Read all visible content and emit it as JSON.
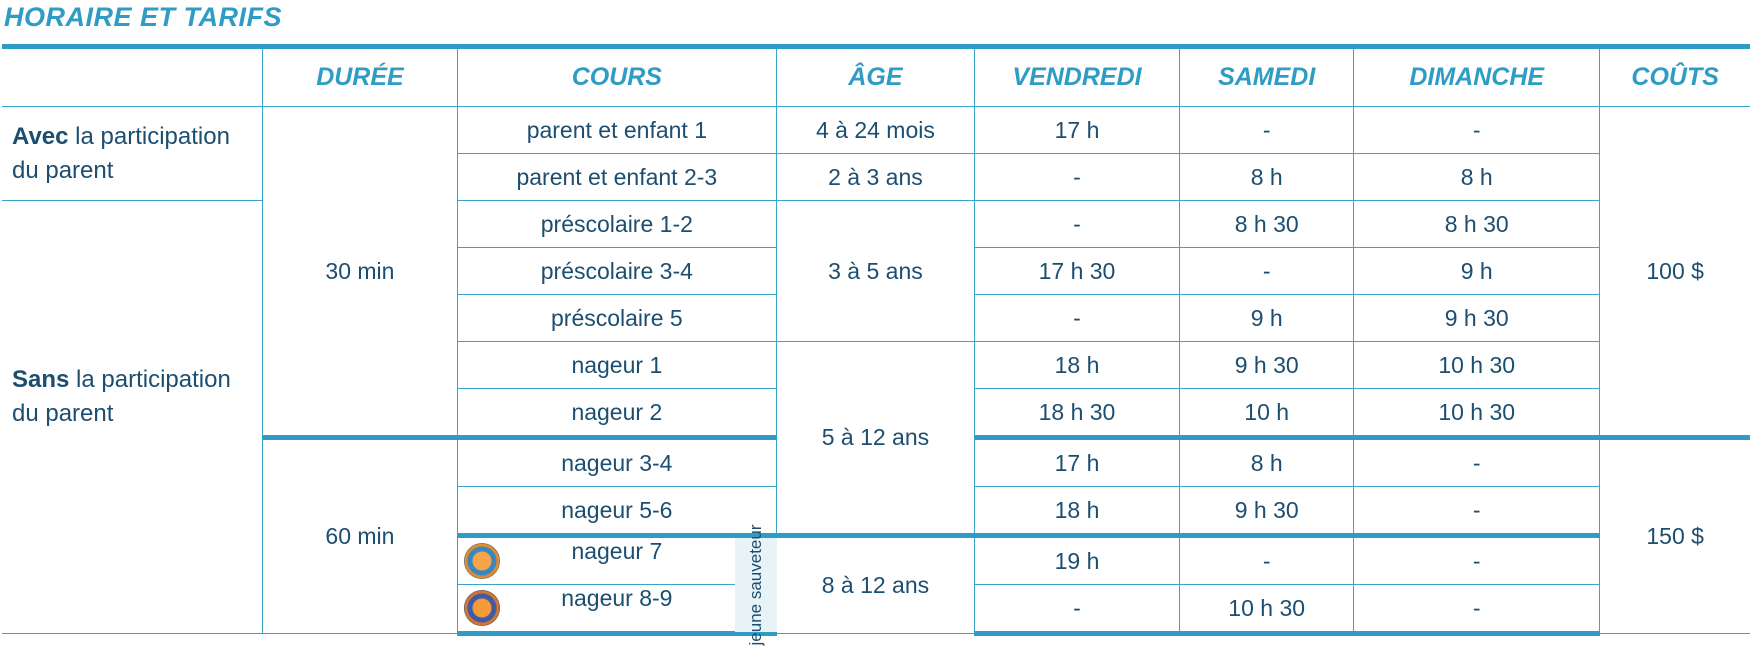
{
  "title": "HORAIRE ET TARIFS",
  "headers": [
    "",
    "DURÉE",
    "COURS",
    "ÂGE",
    "VENDREDI",
    "SAMEDI",
    "DIMANCHE",
    "COÛTS"
  ],
  "groups": {
    "avec": {
      "bold": "Avec",
      "rest": " la participation du parent"
    },
    "sans": {
      "bold": "Sans",
      "rest": " la participation du parent"
    }
  },
  "durations": [
    "30 min",
    "60 min"
  ],
  "ages": [
    "4 à 24 mois",
    "2 à 3 ans",
    "3 à 5 ans",
    "5 à 12 ans",
    "8 à 12 ans"
  ],
  "costs": [
    "100 $",
    "150 $"
  ],
  "lifeguard_label": "jeune sauveteur",
  "rows": [
    {
      "course": "parent et enfant 1",
      "vendredi": "17 h",
      "samedi": "-",
      "dimanche": "-"
    },
    {
      "course": "parent et enfant 2-3",
      "vendredi": "-",
      "samedi": "8 h",
      "dimanche": "8 h"
    },
    {
      "course": "préscolaire 1-2",
      "vendredi": "-",
      "samedi": "8 h 30",
      "dimanche": "8 h 30"
    },
    {
      "course": "préscolaire 3-4",
      "vendredi": "17 h 30",
      "samedi": "-",
      "dimanche": "9 h"
    },
    {
      "course": "préscolaire 5",
      "vendredi": "-",
      "samedi": "9 h",
      "dimanche": "9 h 30"
    },
    {
      "course": "nageur 1",
      "vendredi": "18 h",
      "samedi": "9 h 30",
      "dimanche": "10 h 30"
    },
    {
      "course": "nageur 2",
      "vendredi": "18 h 30",
      "samedi": "10 h",
      "dimanche": "10 h 30"
    },
    {
      "course": "nageur 3-4",
      "vendredi": "17 h",
      "samedi": "8 h",
      "dimanche": "-"
    },
    {
      "course": "nageur 5-6",
      "vendredi": "18 h",
      "samedi": "9 h 30",
      "dimanche": "-"
    },
    {
      "course": "nageur 7",
      "vendredi": "19 h",
      "samedi": "-",
      "dimanche": "-"
    },
    {
      "course": "nageur 8-9",
      "vendredi": "-",
      "samedi": "10 h 30",
      "dimanche": "-"
    }
  ],
  "colors": {
    "accent": "#2e9cc4",
    "text": "#1c4e70",
    "grid": "#3aa3c8"
  }
}
